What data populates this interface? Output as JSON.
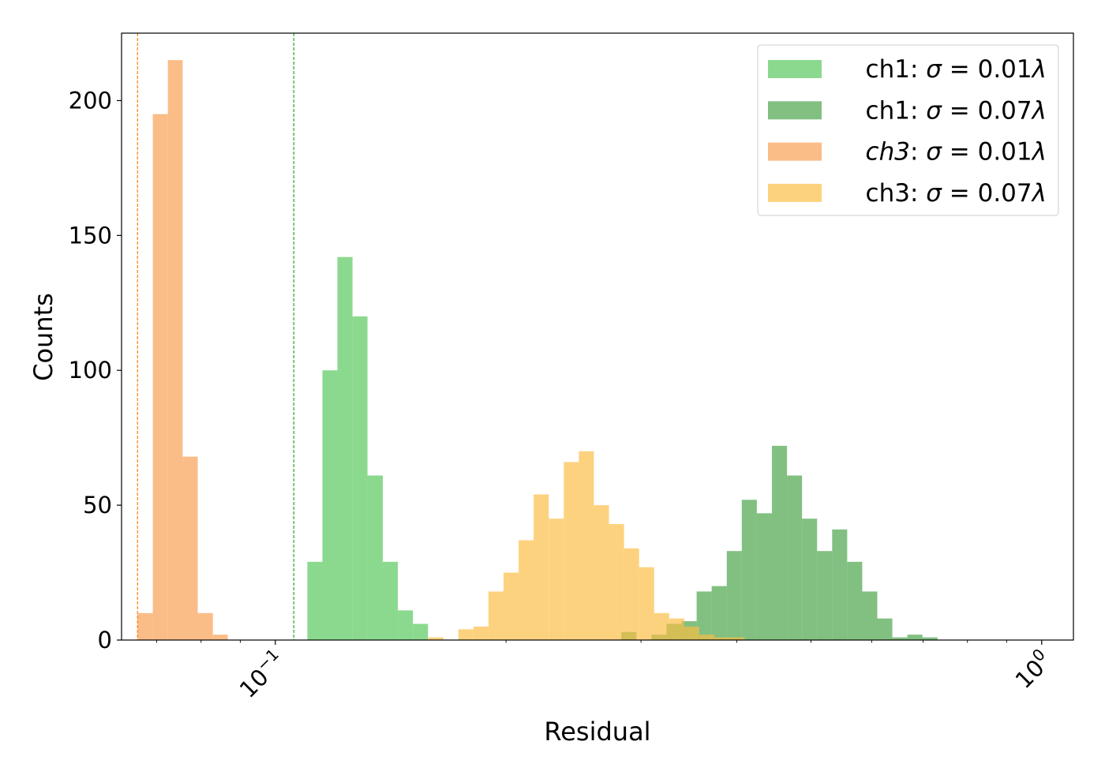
{
  "chart_data": {
    "type": "bar",
    "title": "",
    "xlabel": "Residual",
    "ylabel": "Counts",
    "x_scale": "log",
    "xlim": [
      0.063,
      1.1
    ],
    "ylim": [
      0,
      225
    ],
    "grid": false,
    "legend_position": "top-right",
    "x_ticks": [
      {
        "value": 0.1,
        "base": "10",
        "exp": "−1"
      },
      {
        "value": 1.0,
        "base": "10",
        "exp": "0"
      }
    ],
    "y_ticks": [
      {
        "value": 0,
        "label": "0"
      },
      {
        "value": 50,
        "label": "50"
      },
      {
        "value": 100,
        "label": "100"
      },
      {
        "value": 150,
        "label": "150"
      },
      {
        "value": 200,
        "label": "200"
      }
    ],
    "reference_lines": [
      {
        "x": 0.0661,
        "color": "#ff7f0e",
        "style": "dashed"
      },
      {
        "x": 0.1057,
        "color": "#2ca02c",
        "style": "dashed"
      }
    ],
    "series": [
      {
        "name": "ch1: σ = 0.01λ",
        "legend_parts": [
          "ch1: ",
          "σ",
          " = 0.01",
          "λ"
        ],
        "color": "#5ecb63",
        "opacity": 0.72,
        "bin_edges": [
          0.1101,
          0.1152,
          0.1205,
          0.1261,
          0.1319,
          0.1381,
          0.1445,
          0.1512,
          0.1582,
          0.1655
        ],
        "counts": [
          29,
          100,
          142,
          120,
          61,
          29,
          11,
          6,
          0
        ]
      },
      {
        "name": "ch1: σ = 0.07λ",
        "legend_parts": [
          "ch1: ",
          "σ",
          " = 0.07",
          "λ"
        ],
        "color": "#3e9e3e",
        "opacity": 0.65,
        "bin_edges": [
          0.2828,
          0.2959,
          0.3096,
          0.3239,
          0.3389,
          0.3546,
          0.371,
          0.3882,
          0.4061,
          0.4249,
          0.4446,
          0.4652,
          0.4867,
          0.5092,
          0.5328,
          0.5574,
          0.5832,
          0.6102,
          0.6384,
          0.6679,
          0.6988,
          0.7312
        ],
        "counts": [
          3,
          0,
          2,
          6,
          7,
          18,
          20,
          33,
          52,
          47,
          72,
          61,
          45,
          33,
          41,
          29,
          18,
          8,
          1,
          2,
          1
        ]
      },
      {
        "name": "ch3: σ = 0.01λ",
        "legend_parts": [
          "ch3",
          ": ",
          "σ",
          " = 0.01",
          "λ"
        ],
        "legend_italic_prefix": true,
        "color": "#f9a35a",
        "opacity": 0.72,
        "bin_edges": [
          0.0661,
          0.0692,
          0.0724,
          0.0757,
          0.0792,
          0.0829,
          0.0867,
          0.0907
        ],
        "counts": [
          10,
          195,
          215,
          68,
          10,
          2,
          0
        ]
      },
      {
        "name": "ch3: σ = 0.07λ",
        "legend_parts": [
          "ch3: ",
          "σ",
          " = 0.07",
          "λ"
        ],
        "color": "#fcbc43",
        "opacity": 0.68,
        "bin_edges": [
          0.1583,
          0.1657,
          0.1733,
          0.1813,
          0.1897,
          0.1985,
          0.2077,
          0.2173,
          0.2274,
          0.2379,
          0.2489,
          0.2604,
          0.2725,
          0.2851,
          0.2983,
          0.3121,
          0.3265,
          0.3416,
          0.3574,
          0.374,
          0.3913,
          0.4094
        ],
        "counts": [
          1,
          0,
          4,
          5,
          18,
          25,
          37,
          54,
          45,
          66,
          70,
          50,
          43,
          34,
          27,
          10,
          8,
          5,
          2,
          1,
          1
        ]
      }
    ]
  }
}
